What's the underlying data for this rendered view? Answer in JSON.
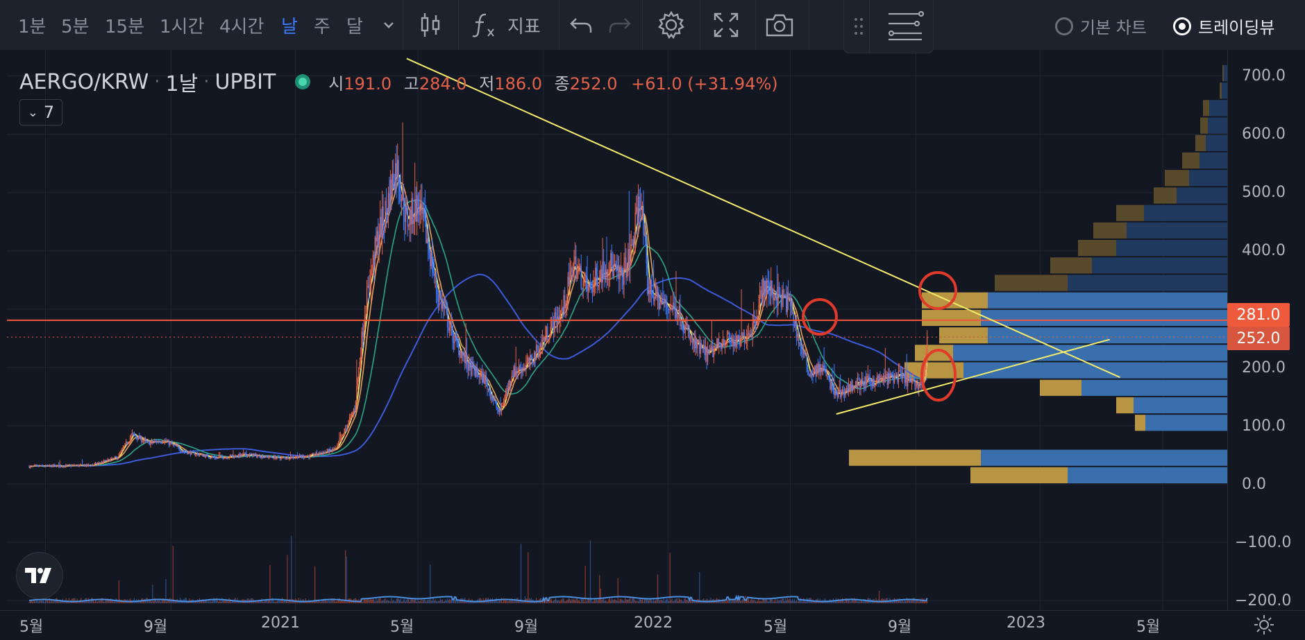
{
  "toolbar": {
    "intervals": [
      "1분",
      "5분",
      "15분",
      "1시간",
      "4시간",
      "날",
      "주",
      "달"
    ],
    "active_interval": "날",
    "indicators_label": "지표",
    "chart_type_basic": "기본 차트",
    "chart_type_tradingview": "트레이딩뷰",
    "selected_chart_type": "트레이딩뷰"
  },
  "legend": {
    "symbol": "AERGO/KRW",
    "interval": "1날",
    "exchange": "UPBIT",
    "open_key": "시",
    "open": "191.0",
    "high_key": "고",
    "high": "284.0",
    "low_key": "저",
    "low": "186.0",
    "close_key": "종",
    "close": "252.0",
    "change": "+61.0 (+31.94%)",
    "indicator_count": "7"
  },
  "price_tags": {
    "line_price": "281.0",
    "last_price": "252.0"
  },
  "colors": {
    "up": "#e4624a",
    "down": "#3d7bff",
    "background": "#131722",
    "trendline": "#f5eb6a",
    "horizontal_line": "#f05a3c",
    "annotation": "#e03a2a"
  },
  "chart_data": {
    "type": "line",
    "symbol": "AERGO/KRW",
    "y_ticks": [
      "700.0",
      "600.0",
      "500.0",
      "400.0",
      "300.0",
      "200.0",
      "100.0",
      "0.0",
      "−100.0",
      "−200.0"
    ],
    "x_ticks": [
      "5월",
      "9월",
      "2021",
      "5월",
      "9월",
      "2022",
      "5월",
      "9월",
      "2023",
      "5월"
    ],
    "ylim": [
      -200,
      700
    ],
    "price_anchors": [
      [
        "2020-04-15",
        30
      ],
      [
        "2020-06-15",
        32
      ],
      [
        "2020-07-10",
        45
      ],
      [
        "2020-07-25",
        85
      ],
      [
        "2020-08-10",
        70
      ],
      [
        "2020-08-25",
        75
      ],
      [
        "2020-09-15",
        55
      ],
      [
        "2020-10-15",
        45
      ],
      [
        "2020-11-15",
        50
      ],
      [
        "2020-12-15",
        45
      ],
      [
        "2021-01-15",
        48
      ],
      [
        "2021-02-10",
        60
      ],
      [
        "2021-02-28",
        130
      ],
      [
        "2021-03-10",
        300
      ],
      [
        "2021-03-22",
        420
      ],
      [
        "2021-04-01",
        480
      ],
      [
        "2021-04-10",
        550
      ],
      [
        "2021-04-20",
        450
      ],
      [
        "2021-05-01",
        480
      ],
      [
        "2021-05-10",
        420
      ],
      [
        "2021-05-20",
        330
      ],
      [
        "2021-06-05",
        250
      ],
      [
        "2021-06-20",
        200
      ],
      [
        "2021-07-05",
        180
      ],
      [
        "2021-07-20",
        120
      ],
      [
        "2021-08-01",
        190
      ],
      [
        "2021-08-20",
        210
      ],
      [
        "2021-09-05",
        260
      ],
      [
        "2021-09-20",
        300
      ],
      [
        "2021-10-01",
        380
      ],
      [
        "2021-10-15",
        330
      ],
      [
        "2021-10-25",
        360
      ],
      [
        "2021-11-05",
        380
      ],
      [
        "2021-11-15",
        350
      ],
      [
        "2021-11-25",
        390
      ],
      [
        "2021-12-05",
        500
      ],
      [
        "2021-12-12",
        340
      ],
      [
        "2021-12-25",
        310
      ],
      [
        "2022-01-10",
        300
      ],
      [
        "2022-01-25",
        240
      ],
      [
        "2022-02-10",
        220
      ],
      [
        "2022-02-25",
        250
      ],
      [
        "2022-03-10",
        240
      ],
      [
        "2022-03-25",
        270
      ],
      [
        "2022-04-05",
        340
      ],
      [
        "2022-04-20",
        320
      ],
      [
        "2022-05-01",
        310
      ],
      [
        "2022-05-10",
        240
      ],
      [
        "2022-05-20",
        190
      ],
      [
        "2022-06-01",
        200
      ],
      [
        "2022-06-15",
        150
      ],
      [
        "2022-07-01",
        170
      ],
      [
        "2022-07-15",
        175
      ],
      [
        "2022-08-01",
        180
      ],
      [
        "2022-08-15",
        185
      ],
      [
        "2022-09-01",
        170
      ],
      [
        "2022-09-08",
        175
      ],
      [
        "2022-09-12",
        252
      ]
    ],
    "volume_profile": [
      {
        "low": 0,
        "high": 30,
        "up": 140,
        "down": 230
      },
      {
        "low": 30,
        "high": 60,
        "up": 190,
        "down": 355
      },
      {
        "low": 60,
        "high": 90,
        "up": 0,
        "down": 0
      },
      {
        "low": 90,
        "high": 120,
        "up": 15,
        "down": 118
      },
      {
        "low": 120,
        "high": 150,
        "up": 25,
        "down": 135
      },
      {
        "low": 150,
        "high": 180,
        "up": 60,
        "down": 210
      },
      {
        "low": 180,
        "high": 210,
        "up": 85,
        "down": 380
      },
      {
        "low": 210,
        "high": 240,
        "up": 55,
        "down": 395
      },
      {
        "low": 240,
        "high": 270,
        "up": 70,
        "down": 345
      },
      {
        "low": 270,
        "high": 300,
        "up": 85,
        "down": 355
      },
      {
        "low": 300,
        "high": 330,
        "up": 95,
        "down": 345
      },
      {
        "low": 330,
        "high": 360,
        "up": 105,
        "down": 230
      },
      {
        "low": 360,
        "high": 390,
        "up": 60,
        "down": 195
      },
      {
        "low": 390,
        "high": 420,
        "up": 55,
        "down": 160
      },
      {
        "low": 420,
        "high": 450,
        "up": 48,
        "down": 145
      },
      {
        "low": 450,
        "high": 480,
        "up": 40,
        "down": 120
      },
      {
        "low": 480,
        "high": 510,
        "up": 33,
        "down": 73
      },
      {
        "low": 510,
        "high": 540,
        "up": 35,
        "down": 55
      },
      {
        "low": 540,
        "high": 570,
        "up": 25,
        "down": 40
      },
      {
        "low": 570,
        "high": 600,
        "up": 15,
        "down": 31
      },
      {
        "low": 600,
        "high": 630,
        "up": 11,
        "down": 28
      },
      {
        "low": 630,
        "high": 660,
        "up": 9,
        "down": 26
      },
      {
        "low": 660,
        "high": 690,
        "up": 3,
        "down": 8
      },
      {
        "low": 690,
        "high": 720,
        "up": 2,
        "down": 5
      }
    ],
    "horizontal_line": 281,
    "last_price": 252,
    "trendlines": [
      {
        "from": [
          "2021-04-20",
          730
        ],
        "to": [
          "2023-03-20",
          183
        ]
      },
      {
        "from": [
          "2022-06-15",
          120
        ],
        "to": [
          "2023-03-10",
          248
        ]
      }
    ]
  }
}
